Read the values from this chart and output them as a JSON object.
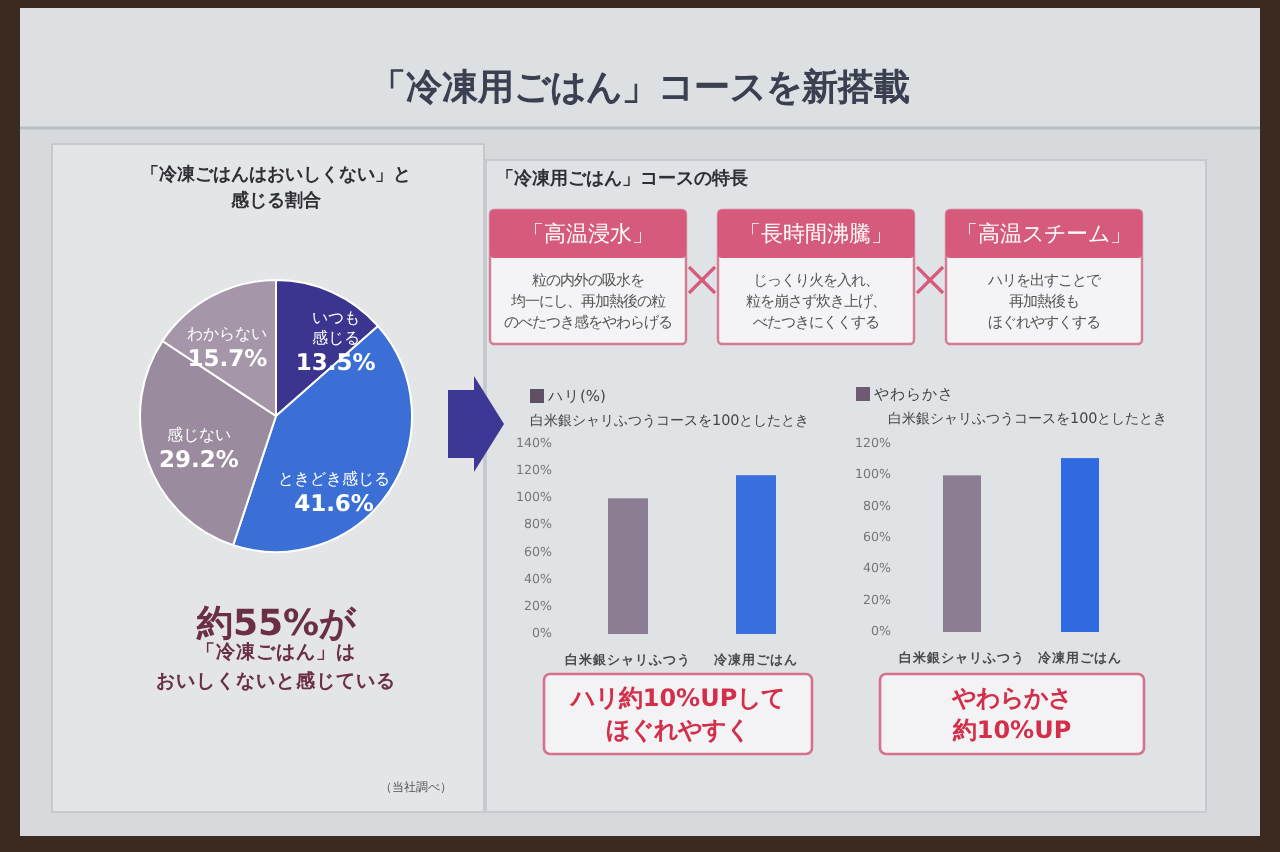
{
  "chart_data": [
    {
      "type": "other",
      "title": "「冷凍用ごはん」コースを新搭載"
    },
    {
      "type": "pie",
      "title": "「冷凍ごはんはおいしくない」と感じる割合",
      "categories": [
        "いつも感じる",
        "ときどき感じる",
        "感じない",
        "わからない"
      ],
      "values": [
        13.5,
        41.6,
        29.2,
        15.7
      ],
      "colors": [
        "#3b358f",
        "#3c6fd6",
        "#9a8b9e",
        "#a597a9"
      ],
      "value_labels": [
        "13.5%",
        "41.6%",
        "29.2%",
        "15.7%"
      ],
      "annotations": [
        "約55%が「冷凍ごはん」はおいしくないと感じている",
        "（当社調べ）"
      ]
    },
    {
      "type": "other",
      "title": "「冷凍用ごはん」コースの特長",
      "annotations": [
        "「高温浸水」",
        "粒の内外の吸水を均一にし、再加熱後の粒のべたつき感をやわらげる",
        "「長時間沸騰」",
        "じっくり火を入れ、粒を崩さず炊き上げ、べたつきにくくする",
        "「高温スチーム」",
        "ハリを出すことで再加熱後もほぐれやすくする"
      ]
    },
    {
      "type": "bar",
      "subtitle": "白米銀シャリふつうコースを100としたとき",
      "categories": [
        "白米銀シャリふつう",
        "冷凍用ごはん"
      ],
      "series": [
        {
          "name": "ハリ(%)",
          "color": "#5f5064",
          "colors": [
            "#8b7d92",
            "#3a6fe0"
          ],
          "values": [
            100,
            117
          ]
        }
      ],
      "ylim": [
        0,
        140
      ],
      "yticks": [
        {
          "value": 0,
          "label": "0%"
        },
        {
          "value": 20,
          "label": "20%"
        },
        {
          "value": 40,
          "label": "40%"
        },
        {
          "value": 60,
          "label": "60%"
        },
        {
          "value": 80,
          "label": "80%"
        },
        {
          "value": 100,
          "label": "100%"
        },
        {
          "value": 120,
          "label": "120%"
        },
        {
          "value": 140,
          "label": "140%"
        }
      ],
      "legend": "top left",
      "annotations": [
        "ハリ約10%UPしてほぐれやすく"
      ]
    },
    {
      "type": "bar",
      "subtitle": "白米銀シャリふつうコースを100としたとき",
      "categories": [
        "白米銀シャリふつう",
        "冷凍用ごはん"
      ],
      "series": [
        {
          "name": "やわらかさ",
          "color": "#6e5a72",
          "colors": [
            "#8b7d92",
            "#2f6ae0"
          ],
          "values": [
            100,
            111
          ]
        }
      ],
      "ylim": [
        0,
        120
      ],
      "yticks": [
        {
          "value": 0,
          "label": "0%"
        },
        {
          "value": 20,
          "label": "20%"
        },
        {
          "value": 40,
          "label": "40%"
        },
        {
          "value": 60,
          "label": "60%"
        },
        {
          "value": 80,
          "label": "80%"
        },
        {
          "value": 100,
          "label": "100%"
        },
        {
          "value": 120,
          "label": "120%"
        }
      ],
      "legend": "top left",
      "annotations": [
        "やわらかさ約10%UP"
      ]
    }
  ]
}
